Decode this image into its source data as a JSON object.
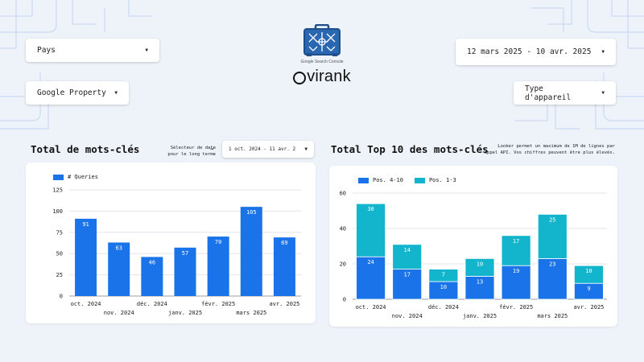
{
  "filters": {
    "country": "Pays",
    "property": "Google Property",
    "date_range": "12 mars 2025 - 10 avr. 2025",
    "device": "Type d'appareil"
  },
  "header": {
    "logo_caption": "Google Search Console",
    "brand": "virank"
  },
  "left_section": {
    "title": "Total de mots-clés",
    "date_hint_line1": "Sélecteur de date",
    "date_hint_line2": "pour le long terme",
    "arrow": "→",
    "long_term_range": "1 oct. 2024 - 11 avr. 2"
  },
  "right_section": {
    "title": "Total Top 10 des mots-clés",
    "note_line1": "Looker permet un maximum de 1M de lignes par",
    "note_line2": "appel API. Vos chiffres peuvent être plus élevés."
  },
  "colors": {
    "primary_blue": "#1a73e8",
    "teal": "#12b5cb",
    "circuit": "#c3d6f2"
  },
  "chart_data": [
    {
      "type": "bar",
      "categories": [
        "oct. 2024",
        "nov. 2024",
        "déc. 2024",
        "janv. 2025",
        "févr. 2025",
        "mars 2025",
        "avr. 2025"
      ],
      "series": [
        {
          "name": "# Queries",
          "values": [
            91,
            63,
            46,
            57,
            70,
            105,
            69
          ],
          "color": "#1a73e8"
        }
      ],
      "yticks": [
        0,
        25,
        50,
        75,
        100,
        125
      ],
      "ylim": [
        0,
        125
      ],
      "grid": true,
      "legend": "top-left"
    },
    {
      "type": "bar",
      "stacked": true,
      "categories": [
        "oct. 2024",
        "nov. 2024",
        "déc. 2024",
        "janv. 2025",
        "févr. 2025",
        "mars 2025",
        "avr. 2025"
      ],
      "series": [
        {
          "name": "Pos. 4-10",
          "values": [
            24,
            17,
            10,
            13,
            19,
            23,
            9
          ],
          "color": "#1a73e8"
        },
        {
          "name": "Pos. 1-3",
          "values": [
            30,
            14,
            7,
            10,
            17,
            25,
            10
          ],
          "color": "#12b5cb"
        }
      ],
      "yticks": [
        0,
        20,
        40,
        60
      ],
      "ylim": [
        0,
        60
      ],
      "grid": true,
      "legend": "top-left"
    }
  ]
}
